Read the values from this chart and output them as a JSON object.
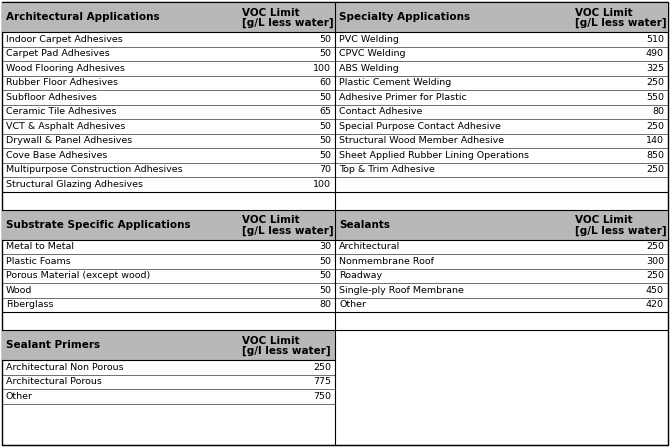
{
  "header_bg": "#b8b8b8",
  "body_bg": "#ffffff",
  "font_size": 6.8,
  "header_font_size": 7.5,
  "figw": 6.7,
  "figh": 4.47,
  "dpi": 100,
  "sections": [
    {
      "header_left": "Architectural Applications",
      "header_right_line1": "VOC Limit",
      "header_right_line2": "[g/L less water]",
      "rows": [
        [
          "Indoor Carpet Adhesives",
          "50"
        ],
        [
          "Carpet Pad Adhesives",
          "50"
        ],
        [
          "Wood Flooring Adhesives",
          "100"
        ],
        [
          "Rubber Floor Adhesives",
          "60"
        ],
        [
          "Subfloor Adhesives",
          "50"
        ],
        [
          "Ceramic Tile Adhesives",
          "65"
        ],
        [
          "VCT & Asphalt Adhesives",
          "50"
        ],
        [
          "Drywall & Panel Adhesives",
          "50"
        ],
        [
          "Cove Base Adhesives",
          "50"
        ],
        [
          "Multipurpose Construction Adhesives",
          "70"
        ],
        [
          "Structural Glazing Adhesives",
          "100"
        ]
      ]
    },
    {
      "header_left": "Specialty Applications",
      "header_right_line1": "VOC Limit",
      "header_right_line2": "[g/L less water]",
      "rows": [
        [
          "PVC Welding",
          "510"
        ],
        [
          "CPVC Welding",
          "490"
        ],
        [
          "ABS Welding",
          "325"
        ],
        [
          "Plastic Cement Welding",
          "250"
        ],
        [
          "Adhesive Primer for Plastic",
          "550"
        ],
        [
          "Contact Adhesive",
          "80"
        ],
        [
          "Special Purpose Contact Adhesive",
          "250"
        ],
        [
          "Structural Wood Member Adhesive",
          "140"
        ],
        [
          "Sheet Applied Rubber Lining Operations",
          "850"
        ],
        [
          "Top & Trim Adhesive",
          "250"
        ]
      ]
    },
    {
      "header_left": "Substrate Specific Applications",
      "header_right_line1": "VOC Limit",
      "header_right_line2": "[g/L less water]",
      "rows": [
        [
          "Metal to Metal",
          "30"
        ],
        [
          "Plastic Foams",
          "50"
        ],
        [
          "Porous Material (except wood)",
          "50"
        ],
        [
          "Wood",
          "50"
        ],
        [
          "Fiberglass",
          "80"
        ]
      ]
    },
    {
      "header_left": "Sealants",
      "header_right_line1": "VOC Limit",
      "header_right_line2": "[g/L less water]",
      "rows": [
        [
          "Architectural",
          "250"
        ],
        [
          "Nonmembrane Roof",
          "300"
        ],
        [
          "Roadway",
          "250"
        ],
        [
          "Single-ply Roof Membrane",
          "450"
        ],
        [
          "Other",
          "420"
        ]
      ]
    },
    {
      "header_left": "Sealant Primers",
      "header_right_line1": "VOC Limit",
      "header_right_line2": "[g/l less water]",
      "rows": [
        [
          "Architectural Non Porous",
          "250"
        ],
        [
          "Architectural Porous",
          "775"
        ],
        [
          "Other",
          "750"
        ]
      ]
    }
  ]
}
